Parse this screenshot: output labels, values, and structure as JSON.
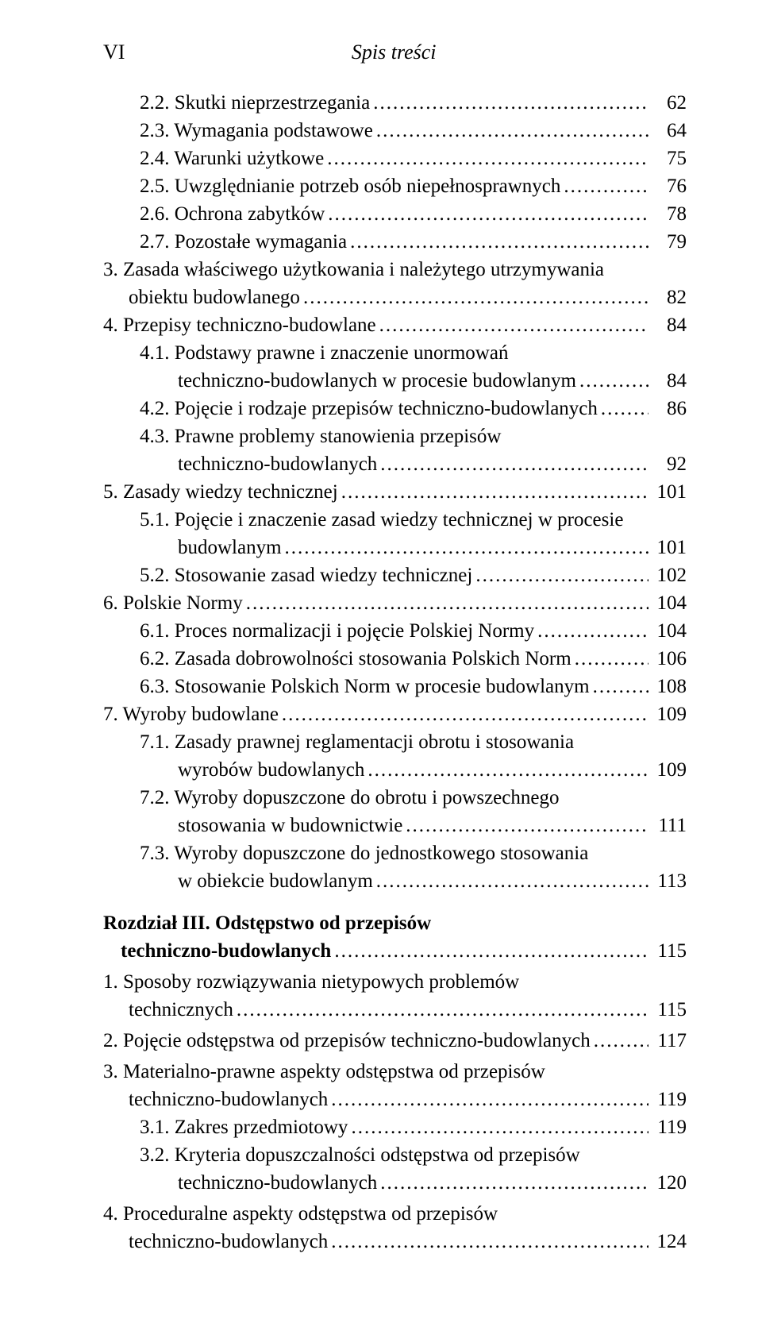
{
  "header": {
    "page_num": "VI",
    "title": "Spis treści"
  },
  "entries": [
    {
      "indent": 1,
      "text": "2.2. Skutki nieprzestrzegania",
      "page": "62"
    },
    {
      "indent": 1,
      "text": "2.3. Wymagania podstawowe",
      "page": "64"
    },
    {
      "indent": 1,
      "text": "2.4. Warunki użytkowe",
      "page": "75"
    },
    {
      "indent": 1,
      "text": "2.5. Uwzględnianie potrzeb osób niepełnosprawnych",
      "page": "76"
    },
    {
      "indent": 1,
      "text": "2.6. Ochrona zabytków",
      "page": "78"
    },
    {
      "indent": 1,
      "text": "2.7. Pozostałe wymagania",
      "page": "79"
    },
    {
      "indent": 0,
      "multiline": true,
      "line1": "3. Zasada właściwego użytkowania i należytego utrzymywania",
      "line2": "obiektu budowlanego",
      "line2_indent": 32,
      "page": "82"
    },
    {
      "indent": 0,
      "text": "4. Przepisy techniczno-budowlane",
      "page": "84"
    },
    {
      "indent": 1,
      "multiline": true,
      "line1": "4.1. Podstawy prawne i znaczenie unormowań",
      "line2": "techniczno-budowlanych w procesie budowlanym",
      "line2_indent": 48,
      "page": "84"
    },
    {
      "indent": 1,
      "text": "4.2. Pojęcie i rodzaje przepisów techniczno-budowlanych",
      "page": "86"
    },
    {
      "indent": 1,
      "multiline": true,
      "line1": "4.3. Prawne problemy stanowienia przepisów",
      "line2": "techniczno-budowlanych",
      "line2_indent": 48,
      "page": "92"
    },
    {
      "indent": 0,
      "text": "5. Zasady wiedzy technicznej",
      "page": "101"
    },
    {
      "indent": 1,
      "multiline": true,
      "line1": "5.1. Pojęcie i znaczenie zasad wiedzy technicznej w procesie",
      "line2": "budowlanym",
      "line2_indent": 48,
      "page": "101"
    },
    {
      "indent": 1,
      "text": "5.2. Stosowanie zasad wiedzy technicznej",
      "page": "102"
    },
    {
      "indent": 0,
      "text": "6. Polskie Normy",
      "page": "104"
    },
    {
      "indent": 1,
      "text": "6.1. Proces normalizacji i pojęcie Polskiej Normy",
      "page": "104"
    },
    {
      "indent": 1,
      "text": "6.2. Zasada dobrowolności stosowania Polskich Norm",
      "page": "106"
    },
    {
      "indent": 1,
      "text": "6.3. Stosowanie Polskich Norm w procesie budowlanym",
      "page": "108"
    },
    {
      "indent": 0,
      "text": "7. Wyroby budowlane",
      "page": "109"
    },
    {
      "indent": 1,
      "multiline": true,
      "line1": "7.1. Zasady prawnej reglamentacji obrotu i stosowania",
      "line2": "wyrobów budowlanych",
      "line2_indent": 48,
      "page": "109"
    },
    {
      "indent": 1,
      "multiline": true,
      "line1": "7.2. Wyroby dopuszczone do obrotu i powszechnego",
      "line2": "stosowania w budownictwie",
      "line2_indent": 48,
      "page": "111"
    },
    {
      "indent": 1,
      "multiline": true,
      "line1": "7.3. Wyroby dopuszczone do jednostkowego stosowania",
      "line2": "w obiekcie budowlanym",
      "line2_indent": 48,
      "page": "113"
    }
  ],
  "chapter": {
    "line1_bold": "Rozdział III. Odstępstwo od przepisów",
    "line2_bold": "techniczno-budowlanych",
    "line2_indent": 22,
    "page": "115"
  },
  "chapter_entries": [
    {
      "indent": 0,
      "multiline": true,
      "gap": true,
      "line1": "1. Sposoby rozwiązywania nietypowych problemów",
      "line2": "technicznych",
      "line2_indent": 32,
      "page": "115"
    },
    {
      "indent": 0,
      "gap": true,
      "text": "2. Pojęcie odstępstwa od przepisów techniczno-budowlanych",
      "page": "117"
    },
    {
      "indent": 0,
      "multiline": true,
      "gap": true,
      "line1": "3. Materialno-prawne aspekty odstępstwa od przepisów",
      "line2": "techniczno-budowlanych",
      "line2_indent": 32,
      "page": "119"
    },
    {
      "indent": 1,
      "text": "3.1. Zakres przedmiotowy",
      "page": "119"
    },
    {
      "indent": 1,
      "multiline": true,
      "line1": "3.2. Kryteria dopuszczalności odstępstwa od przepisów",
      "line2": "techniczno-budowlanych",
      "line2_indent": 48,
      "page": "120"
    },
    {
      "indent": 0,
      "multiline": true,
      "gap": true,
      "line1": "4. Proceduralne aspekty odstępstwa od przepisów",
      "line2": "techniczno-budowlanych",
      "line2_indent": 32,
      "page": "124"
    }
  ]
}
